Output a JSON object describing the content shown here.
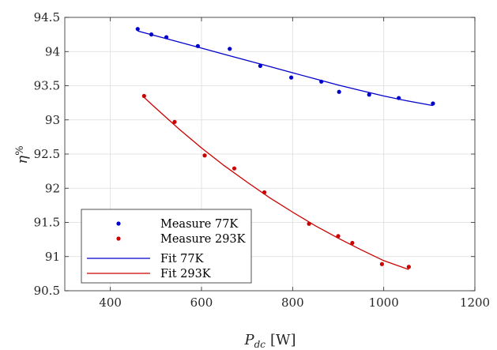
{
  "chart_data": {
    "type": "scatter",
    "title": "",
    "xlabel": "P_dc [W]",
    "ylabel": "η%",
    "xlabel_main": "P",
    "xlabel_sub": "dc",
    "xlabel_unit": "[W]",
    "ylabel_main": "η",
    "ylabel_sup": "%",
    "xlim": [
      300,
      1200
    ],
    "ylim": [
      90.5,
      94.5
    ],
    "x_ticks": [
      400,
      600,
      800,
      1000,
      1200
    ],
    "y_ticks": [
      90.5,
      91,
      91.5,
      92,
      92.5,
      93,
      93.5,
      94,
      94.5
    ],
    "x_tick_labels": [
      "400",
      "600",
      "800",
      "1000",
      "1200"
    ],
    "y_tick_labels": [
      "90.5",
      "91",
      "91.5",
      "92",
      "92.5",
      "93",
      "93.5",
      "94",
      "94.5"
    ],
    "grid": true,
    "legend_position": "bottom-left",
    "series": [
      {
        "name": "Measure 77K",
        "kind": "markers",
        "color": "#0000cc",
        "x": [
          460,
          490,
          523,
          592,
          662,
          729,
          797,
          863,
          902,
          968,
          1033,
          1108
        ],
        "y": [
          94.33,
          94.25,
          94.21,
          94.08,
          94.04,
          93.79,
          93.62,
          93.56,
          93.41,
          93.37,
          93.32,
          93.24
        ]
      },
      {
        "name": "Measure 293K",
        "kind": "markers",
        "color": "#cc0000",
        "x": [
          474,
          541,
          607,
          672,
          738,
          836,
          900,
          931,
          996,
          1055
        ],
        "y": [
          93.35,
          92.97,
          92.48,
          92.29,
          91.94,
          91.48,
          91.3,
          91.2,
          90.89,
          90.85
        ]
      },
      {
        "name": "Fit 77K",
        "kind": "line",
        "color": "#0000cc",
        "x": [
          460,
          500,
          550,
          600,
          650,
          700,
          750,
          800,
          850,
          900,
          950,
          1000,
          1050,
          1108
        ],
        "y": [
          94.3,
          94.23,
          94.14,
          94.05,
          93.96,
          93.87,
          93.78,
          93.69,
          93.6,
          93.51,
          93.43,
          93.35,
          93.28,
          93.21
        ]
      },
      {
        "name": "Fit 293K",
        "kind": "line",
        "color": "#cc0000",
        "x": [
          474,
          500,
          550,
          600,
          650,
          700,
          750,
          800,
          850,
          900,
          950,
          1000,
          1055
        ],
        "y": [
          93.33,
          93.17,
          92.87,
          92.59,
          92.33,
          92.09,
          91.86,
          91.65,
          91.45,
          91.27,
          91.1,
          90.94,
          90.81
        ]
      }
    ]
  }
}
